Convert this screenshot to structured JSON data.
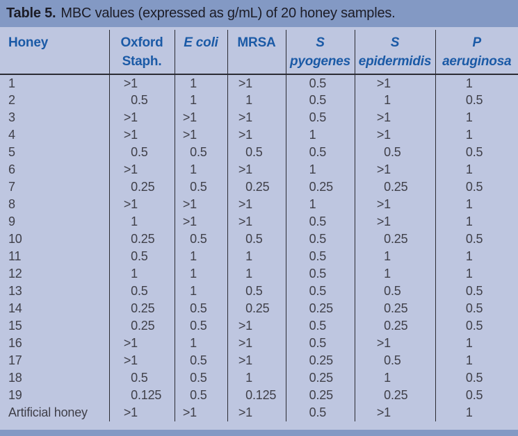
{
  "title": {
    "label": "Table 5.",
    "caption": "MBC values (expressed as g/mL) of 20 honey samples."
  },
  "colors": {
    "bar_bg": "#8399C4",
    "table_bg": "#BEC6E0",
    "header_text": "#1B5AA6",
    "body_text": "#3F3F48",
    "title_text": "#1C1C26",
    "rule": "#2B2B33"
  },
  "table": {
    "columns": [
      {
        "key": "honey",
        "lines": [
          "Honey"
        ],
        "italic": false
      },
      {
        "key": "oxford-staph",
        "lines": [
          "Oxford",
          "Staph."
        ],
        "italic": false
      },
      {
        "key": "e-coli",
        "lines": [
          "E coli"
        ],
        "italic": true
      },
      {
        "key": "mrsa",
        "lines": [
          "MRSA"
        ],
        "italic": false
      },
      {
        "key": "s-pyogenes",
        "lines": [
          "S",
          "pyogenes"
        ],
        "italic": true
      },
      {
        "key": "s-epidermidis",
        "lines": [
          "S",
          "epidermidis"
        ],
        "italic": true
      },
      {
        "key": "p-aeruginosa",
        "lines": [
          "P",
          "aeruginosa"
        ],
        "italic": true
      }
    ],
    "rows": [
      {
        "label": "1",
        "values": [
          ">1",
          "1",
          ">1",
          "0.5",
          ">1",
          "1"
        ]
      },
      {
        "label": "2",
        "values": [
          "0.5",
          "1",
          "1",
          "0.5",
          "1",
          "0.5"
        ]
      },
      {
        "label": "3",
        "values": [
          ">1",
          ">1",
          ">1",
          "0.5",
          ">1",
          "1"
        ]
      },
      {
        "label": "4",
        "values": [
          ">1",
          ">1",
          ">1",
          "1",
          ">1",
          "1"
        ]
      },
      {
        "label": "5",
        "values": [
          "0.5",
          "0.5",
          "0.5",
          "0.5",
          "0.5",
          "0.5"
        ]
      },
      {
        "label": "6",
        "values": [
          ">1",
          "1",
          ">1",
          "1",
          ">1",
          "1"
        ]
      },
      {
        "label": "7",
        "values": [
          "0.25",
          "0.5",
          "0.25",
          "0.25",
          "0.25",
          "0.5"
        ]
      },
      {
        "label": "8",
        "values": [
          ">1",
          ">1",
          ">1",
          "1",
          ">1",
          "1"
        ]
      },
      {
        "label": "9",
        "values": [
          "1",
          ">1",
          ">1",
          "0.5",
          ">1",
          "1"
        ]
      },
      {
        "label": "10",
        "values": [
          "0.25",
          "0.5",
          "0.5",
          "0.5",
          "0.25",
          "0.5"
        ]
      },
      {
        "label": "11",
        "values": [
          "0.5",
          "1",
          "1",
          "0.5",
          "1",
          "1"
        ]
      },
      {
        "label": "12",
        "values": [
          "1",
          "1",
          "1",
          "0.5",
          "1",
          "1"
        ]
      },
      {
        "label": "13",
        "values": [
          "0.5",
          "1",
          "0.5",
          "0.5",
          "0.5",
          "0.5"
        ]
      },
      {
        "label": "14",
        "values": [
          "0.25",
          "0.5",
          "0.25",
          "0.25",
          "0.25",
          "0.5"
        ]
      },
      {
        "label": "15",
        "values": [
          "0.25",
          "0.5",
          ">1",
          "0.5",
          "0.25",
          "0.5"
        ]
      },
      {
        "label": "16",
        "values": [
          ">1",
          "1",
          ">1",
          "0.5",
          ">1",
          "1"
        ]
      },
      {
        "label": "17",
        "values": [
          ">1",
          "0.5",
          ">1",
          "0.25",
          "0.5",
          "1"
        ]
      },
      {
        "label": "18",
        "values": [
          "0.5",
          "0.5",
          "1",
          "0.25",
          "1",
          "0.5"
        ]
      },
      {
        "label": "19",
        "values": [
          "0.125",
          "0.5",
          "0.125",
          "0.25",
          "0.25",
          "0.5"
        ]
      },
      {
        "label": "Artificial honey",
        "values": [
          ">1",
          ">1",
          ">1",
          "0.5",
          ">1",
          "1"
        ]
      }
    ]
  }
}
